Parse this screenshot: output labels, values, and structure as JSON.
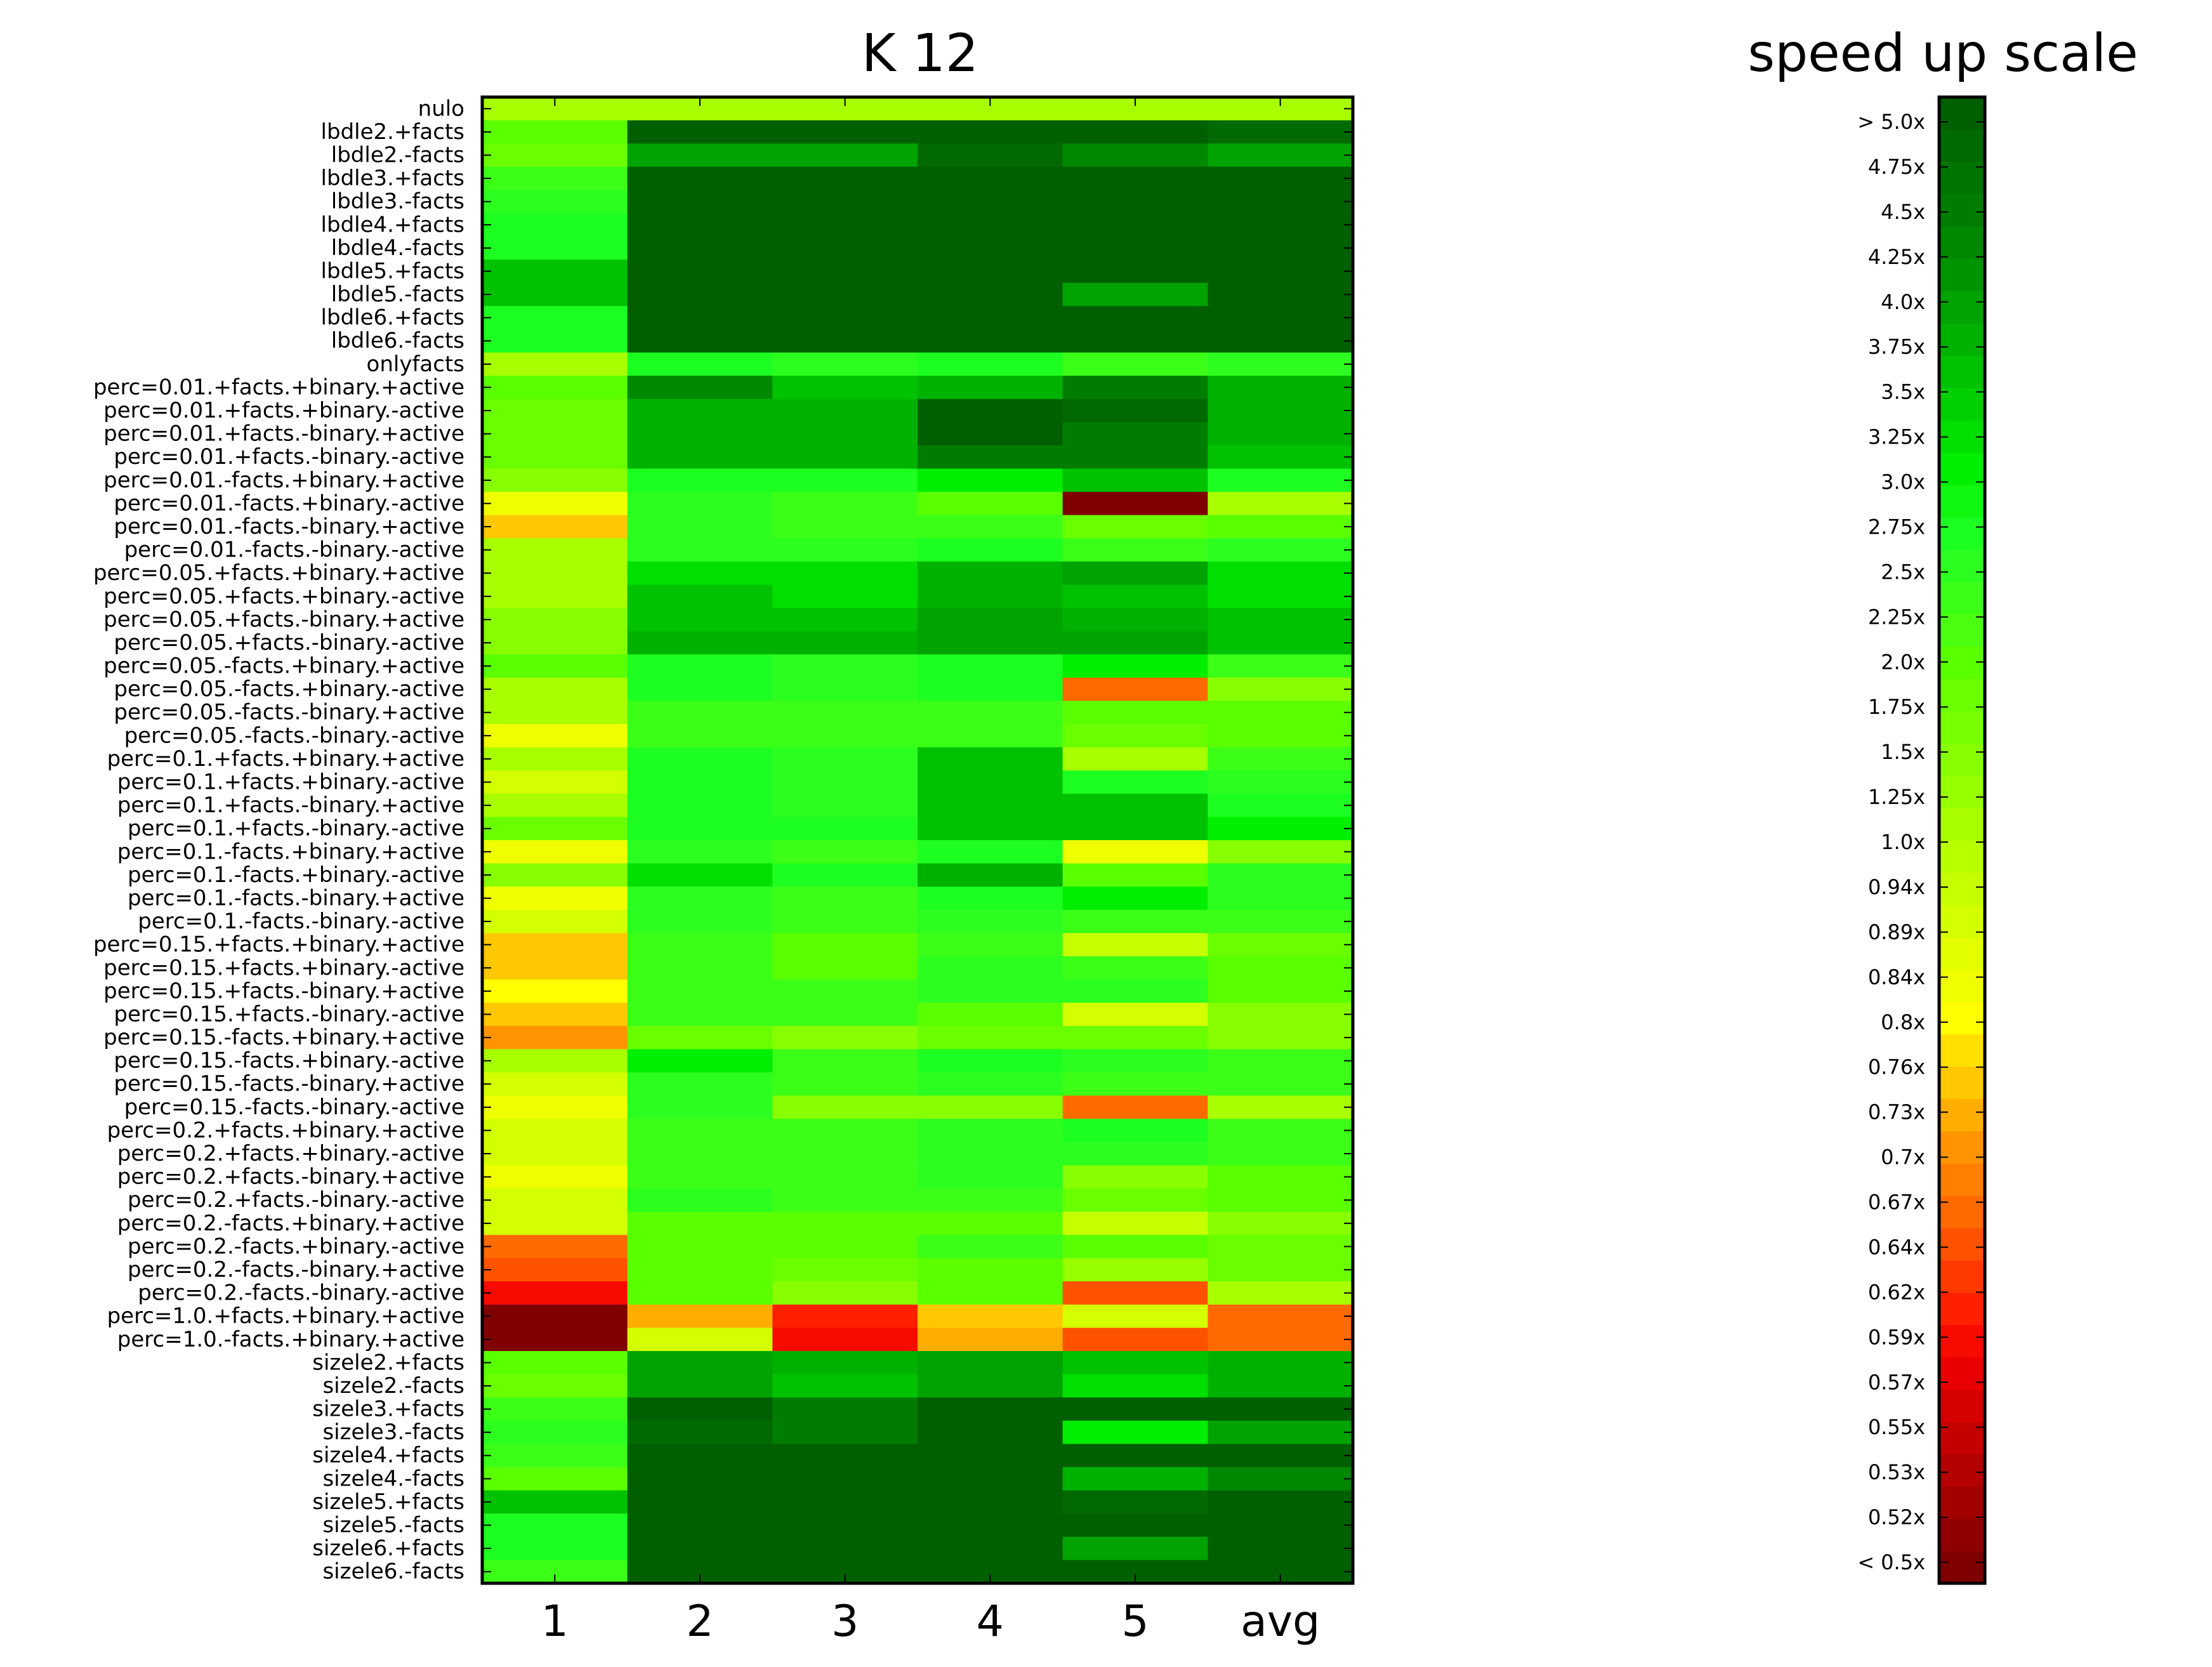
{
  "chart_data": [
    {
      "type": "heatmap",
      "title": "K 12",
      "xlabel": "",
      "ylabel": "",
      "columns": [
        "1",
        "2",
        "3",
        "4",
        "5",
        "avg"
      ],
      "rows": [
        "nulo",
        "lbdle2.+facts",
        "lbdle2.-facts",
        "lbdle3.+facts",
        "lbdle3.-facts",
        "lbdle4.+facts",
        "lbdle4.-facts",
        "lbdle5.+facts",
        "lbdle5.-facts",
        "lbdle6.+facts",
        "lbdle6.-facts",
        "onlyfacts",
        "perc=0.01.+facts.+binary.+active",
        "perc=0.01.+facts.+binary.-active",
        "perc=0.01.+facts.-binary.+active",
        "perc=0.01.+facts.-binary.-active",
        "perc=0.01.-facts.+binary.+active",
        "perc=0.01.-facts.+binary.-active",
        "perc=0.01.-facts.-binary.+active",
        "perc=0.01.-facts.-binary.-active",
        "perc=0.05.+facts.+binary.+active",
        "perc=0.05.+facts.+binary.-active",
        "perc=0.05.+facts.-binary.+active",
        "perc=0.05.+facts.-binary.-active",
        "perc=0.05.-facts.+binary.+active",
        "perc=0.05.-facts.+binary.-active",
        "perc=0.05.-facts.-binary.+active",
        "perc=0.05.-facts.-binary.-active",
        "perc=0.1.+facts.+binary.+active",
        "perc=0.1.+facts.+binary.-active",
        "perc=0.1.+facts.-binary.+active",
        "perc=0.1.+facts.-binary.-active",
        "perc=0.1.-facts.+binary.+active",
        "perc=0.1.-facts.+binary.-active",
        "perc=0.1.-facts.-binary.+active",
        "perc=0.1.-facts.-binary.-active",
        "perc=0.15.+facts.+binary.+active",
        "perc=0.15.+facts.+binary.-active",
        "perc=0.15.+facts.-binary.+active",
        "perc=0.15.+facts.-binary.-active",
        "perc=0.15.-facts.+binary.+active",
        "perc=0.15.-facts.+binary.-active",
        "perc=0.15.-facts.-binary.+active",
        "perc=0.15.-facts.-binary.-active",
        "perc=0.2.+facts.+binary.+active",
        "perc=0.2.+facts.+binary.-active",
        "perc=0.2.+facts.-binary.+active",
        "perc=0.2.+facts.-binary.-active",
        "perc=0.2.-facts.+binary.+active",
        "perc=0.2.-facts.+binary.-active",
        "perc=0.2.-facts.-binary.+active",
        "perc=0.2.-facts.-binary.-active",
        "perc=1.0.+facts.+binary.+active",
        "perc=1.0.-facts.+binary.+active",
        "sizele2.+facts",
        "sizele2.-facts",
        "sizele3.+facts",
        "sizele3.-facts",
        "sizele4.+facts",
        "sizele4.-facts",
        "sizele5.+facts",
        "sizele5.-facts",
        "sizele6.+facts",
        "sizele6.-facts"
      ],
      "value_note": "speed up factor per cell (approximate, read from the colour scale)",
      "values": [
        [
          1.0,
          1.0,
          1.0,
          1.0,
          1.0,
          1.0
        ],
        [
          2.0,
          5.0,
          5.0,
          5.0,
          5.0,
          4.75
        ],
        [
          1.75,
          4.0,
          4.0,
          4.75,
          4.25,
          4.0
        ],
        [
          2.25,
          5.0,
          5.0,
          5.0,
          5.0,
          5.0
        ],
        [
          2.5,
          5.0,
          5.0,
          5.0,
          5.0,
          5.0
        ],
        [
          2.75,
          5.0,
          5.0,
          5.0,
          5.0,
          5.0
        ],
        [
          2.75,
          5.0,
          5.0,
          5.0,
          5.0,
          5.0
        ],
        [
          3.5,
          5.0,
          5.0,
          5.0,
          5.0,
          5.0
        ],
        [
          3.5,
          5.0,
          5.0,
          5.0,
          4.0,
          5.0
        ],
        [
          2.75,
          5.0,
          5.0,
          5.0,
          5.0,
          5.0
        ],
        [
          2.75,
          5.0,
          5.0,
          5.0,
          5.0,
          5.0
        ],
        [
          1.0,
          2.75,
          2.5,
          2.75,
          2.25,
          2.5
        ],
        [
          2.0,
          4.25,
          3.5,
          3.75,
          4.5,
          3.75
        ],
        [
          1.75,
          3.75,
          3.75,
          5.0,
          4.75,
          3.75
        ],
        [
          1.75,
          3.75,
          3.75,
          5.0,
          4.5,
          3.75
        ],
        [
          1.75,
          3.75,
          3.75,
          4.5,
          4.5,
          3.5
        ],
        [
          1.5,
          2.75,
          2.75,
          3.0,
          3.5,
          2.75
        ],
        [
          0.84,
          2.5,
          2.25,
          2.0,
          0.5,
          1.0
        ],
        [
          0.76,
          2.5,
          2.25,
          2.25,
          1.75,
          2.0
        ],
        [
          1.0,
          2.5,
          2.5,
          2.75,
          2.25,
          2.5
        ],
        [
          1.0,
          3.25,
          3.25,
          3.75,
          4.0,
          3.25
        ],
        [
          1.0,
          3.5,
          3.25,
          3.75,
          3.5,
          3.25
        ],
        [
          1.5,
          3.5,
          3.5,
          4.0,
          3.75,
          3.5
        ],
        [
          1.5,
          3.75,
          3.75,
          4.0,
          4.0,
          3.5
        ],
        [
          2.0,
          2.75,
          2.5,
          2.75,
          3.0,
          2.25
        ],
        [
          1.0,
          2.75,
          2.5,
          2.75,
          0.67,
          1.5
        ],
        [
          1.0,
          2.25,
          2.25,
          2.25,
          2.0,
          2.0
        ],
        [
          0.84,
          2.25,
          2.25,
          2.25,
          1.75,
          2.0
        ],
        [
          1.0,
          2.75,
          2.5,
          3.5,
          1.0,
          2.25
        ],
        [
          0.89,
          2.75,
          2.5,
          3.5,
          2.75,
          2.5
        ],
        [
          1.0,
          2.75,
          2.5,
          3.5,
          3.5,
          2.75
        ],
        [
          1.75,
          2.75,
          2.75,
          3.5,
          3.5,
          3.0
        ],
        [
          0.84,
          2.5,
          2.25,
          2.75,
          0.84,
          1.5
        ],
        [
          1.5,
          3.25,
          2.75,
          3.75,
          2.0,
          2.5
        ],
        [
          0.84,
          2.5,
          2.25,
          2.75,
          3.0,
          2.5
        ],
        [
          0.89,
          2.5,
          2.25,
          2.5,
          2.25,
          2.25
        ],
        [
          0.76,
          2.25,
          2.0,
          2.25,
          0.94,
          1.75
        ],
        [
          0.76,
          2.25,
          2.0,
          2.5,
          2.25,
          2.0
        ],
        [
          0.8,
          2.25,
          2.25,
          2.5,
          2.5,
          2.0
        ],
        [
          0.76,
          2.25,
          2.25,
          2.0,
          0.89,
          1.5
        ],
        [
          0.7,
          1.75,
          1.5,
          1.75,
          1.75,
          1.5
        ],
        [
          1.0,
          3.0,
          2.25,
          2.75,
          2.5,
          2.25
        ],
        [
          0.89,
          2.5,
          2.25,
          2.5,
          2.25,
          2.25
        ],
        [
          0.84,
          2.5,
          1.5,
          1.5,
          0.67,
          1.0
        ],
        [
          0.89,
          2.25,
          2.25,
          2.5,
          2.75,
          2.25
        ],
        [
          0.89,
          2.25,
          2.25,
          2.5,
          2.5,
          2.25
        ],
        [
          0.84,
          2.25,
          2.25,
          2.5,
          1.5,
          2.0
        ],
        [
          0.89,
          2.5,
          2.25,
          2.25,
          1.75,
          2.0
        ],
        [
          0.89,
          2.0,
          2.0,
          2.0,
          0.94,
          1.5
        ],
        [
          0.67,
          2.0,
          2.0,
          2.25,
          2.0,
          1.75
        ],
        [
          0.64,
          2.0,
          1.75,
          2.0,
          1.25,
          1.75
        ],
        [
          0.59,
          2.0,
          1.5,
          2.0,
          0.64,
          1.0
        ],
        [
          0.5,
          0.73,
          0.62,
          0.76,
          0.89,
          0.67
        ],
        [
          0.5,
          0.89,
          0.59,
          0.73,
          0.64,
          0.67
        ],
        [
          2.0,
          4.0,
          3.75,
          4.0,
          3.5,
          3.75
        ],
        [
          1.75,
          4.0,
          3.5,
          4.0,
          3.25,
          3.75
        ],
        [
          2.25,
          5.0,
          4.5,
          5.0,
          5.0,
          5.0
        ],
        [
          2.5,
          4.75,
          4.5,
          5.0,
          3.0,
          4.0
        ],
        [
          2.25,
          5.0,
          5.0,
          5.0,
          5.0,
          5.0
        ],
        [
          2.0,
          5.0,
          5.0,
          5.0,
          3.75,
          4.25
        ],
        [
          3.5,
          5.0,
          5.0,
          5.0,
          4.75,
          5.0
        ],
        [
          2.75,
          5.0,
          5.0,
          5.0,
          5.0,
          5.0
        ],
        [
          2.75,
          5.0,
          5.0,
          5.0,
          4.0,
          5.0
        ],
        [
          2.25,
          5.0,
          5.0,
          5.0,
          5.0,
          5.0
        ]
      ]
    },
    {
      "type": "colorbar",
      "title": "speed up scale",
      "tick_labels": [
        "< 0.5x",
        "0.52x",
        "0.53x",
        "0.55x",
        "0.57x",
        "0.59x",
        "0.62x",
        "0.64x",
        "0.67x",
        "0.7x",
        "0.73x",
        "0.76x",
        "0.8x",
        "0.84x",
        "0.89x",
        "0.94x",
        "1.0x",
        "1.25x",
        "1.5x",
        "1.75x",
        "2.0x",
        "2.25x",
        "2.5x",
        "2.75x",
        "3.0x",
        "3.25x",
        "3.5x",
        "3.75x",
        "4.0x",
        "4.25x",
        "4.5x",
        "4.75x",
        "> 5.0x"
      ],
      "colors_low_to_high": [
        "#7f0000",
        "#900000",
        "#a30000",
        "#b40000",
        "#c50000",
        "#d60000",
        "#e80000",
        "#f70a00",
        "#ff2000",
        "#ff3a00",
        "#ff5200",
        "#ff6a00",
        "#ff7f00",
        "#ff9400",
        "#ffad00",
        "#ffc800",
        "#ffe000",
        "#ffff00",
        "#f0ff00",
        "#e4ff00",
        "#d4ff00",
        "#c6ff00",
        "#b8ff00",
        "#a8ff00",
        "#98ff00",
        "#88ff00",
        "#78ff00",
        "#6aff00",
        "#5aff00",
        "#4aff10",
        "#3cff18",
        "#2cff20",
        "#1dff20",
        "#10f810",
        "#00ef00",
        "#00e000",
        "#00d000",
        "#00c200",
        "#00b200",
        "#00a300",
        "#009400",
        "#008800",
        "#007d00",
        "#007400",
        "#006a00",
        "#006000"
      ]
    }
  ]
}
